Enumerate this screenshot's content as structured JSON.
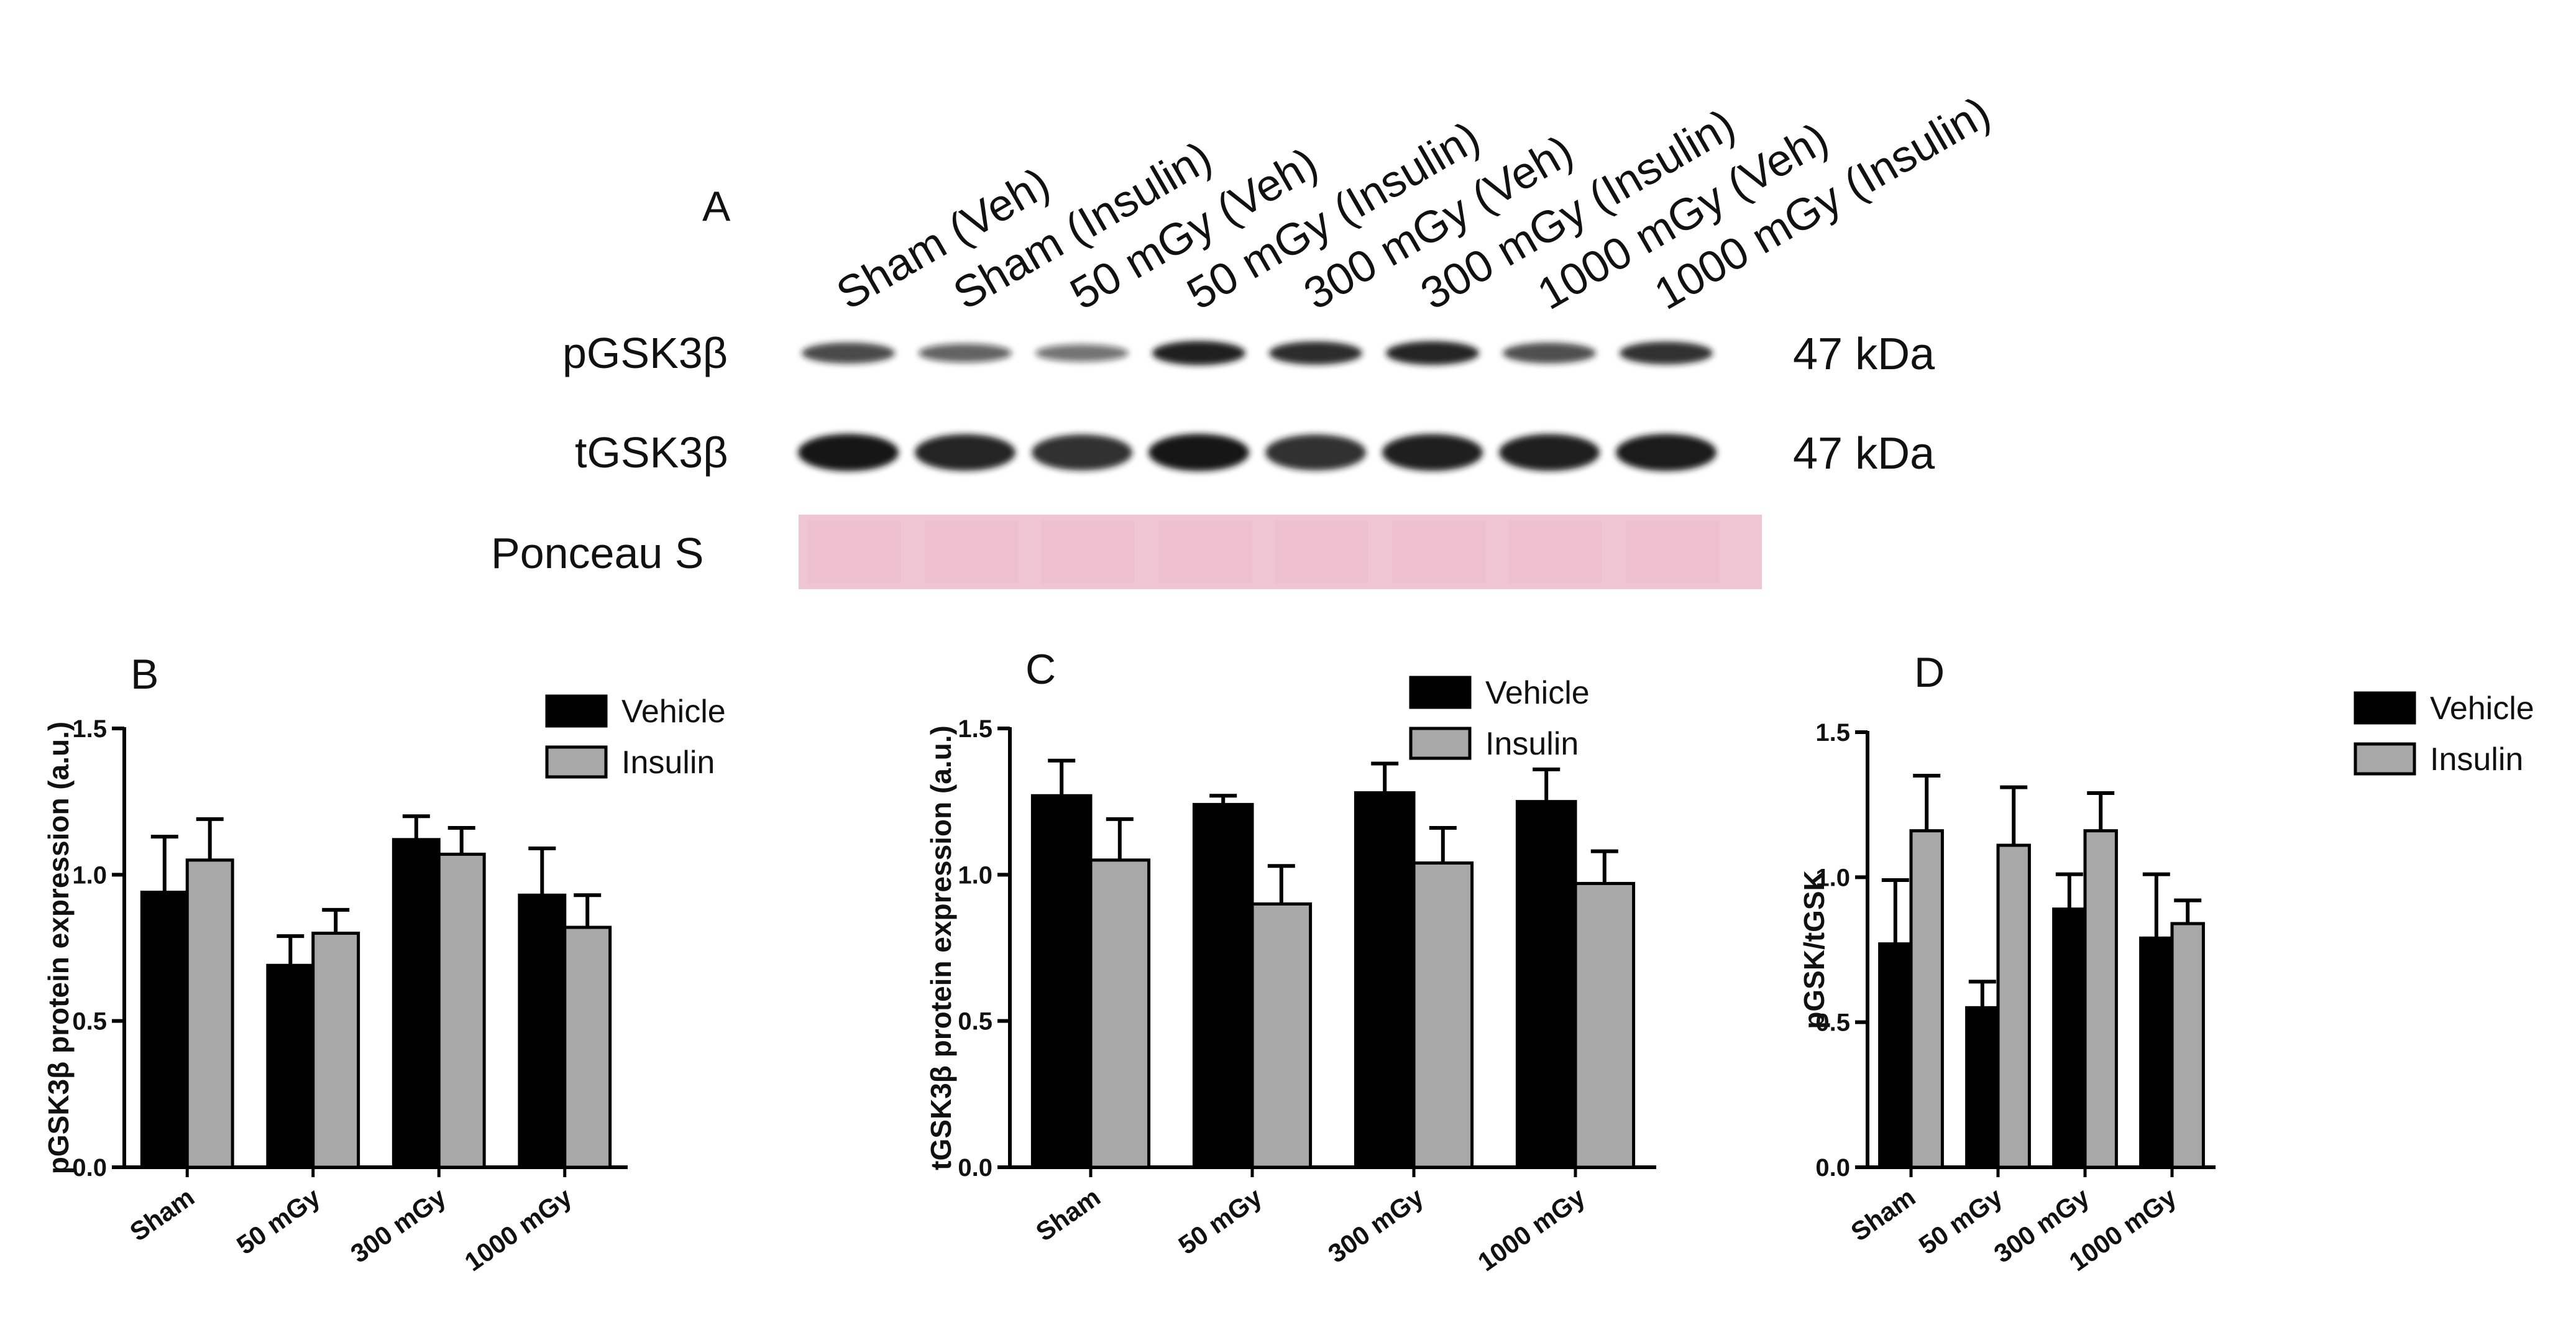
{
  "blot": {
    "panel_label": "A",
    "lanes": [
      "Sham (Veh)",
      "Sham (Insulin)",
      "50 mGy (Veh)",
      "50 mGy (Insulin)",
      "300 mGy (Veh)",
      "300 mGy (Insulin)",
      "1000 mGy (Veh)",
      "1000 mGy (Insulin)"
    ],
    "rows": [
      {
        "label": "pGSK3β",
        "size": "47 kDa",
        "intensity": [
          0.72,
          0.55,
          0.45,
          0.95,
          0.88,
          0.92,
          0.7,
          0.85
        ]
      },
      {
        "label": "tGSK3β",
        "size": "47 kDa",
        "intensity": [
          1.0,
          0.92,
          0.85,
          1.0,
          0.85,
          0.95,
          0.95,
          0.98
        ]
      },
      {
        "label": "Ponceau S",
        "size": "",
        "intensity": []
      }
    ],
    "colors": {
      "band": "#161616",
      "ponceau": "#f1c6d4",
      "ponceau_edge": "#ebb9c9"
    }
  },
  "chart_data": [
    {
      "panel": "B",
      "type": "bar",
      "title": "",
      "xlabel": "",
      "ylabel": "pGSK3β protein expression (a.u.)",
      "categories": [
        "Sham",
        "50 mGy",
        "300 mGy",
        "1000 mGy"
      ],
      "series": [
        {
          "name": "Vehicle",
          "color": "#000000",
          "values": [
            0.94,
            0.69,
            1.12,
            0.93
          ],
          "errors": [
            0.19,
            0.1,
            0.08,
            0.16
          ]
        },
        {
          "name": "Insulin",
          "color": "#a8a8a8",
          "values": [
            1.05,
            0.8,
            1.07,
            0.82
          ],
          "errors": [
            0.14,
            0.08,
            0.09,
            0.11
          ]
        }
      ],
      "ylim": [
        0,
        1.5
      ],
      "yticks": [
        "0.0",
        "0.5",
        "1.0",
        "1.5"
      ],
      "legend": "top-right"
    },
    {
      "panel": "C",
      "type": "bar",
      "title": "",
      "xlabel": "",
      "ylabel": "tGSK3β protein expression (a.u.)",
      "categories": [
        "Sham",
        "50 mGy",
        "300 mGy",
        "1000 mGy"
      ],
      "series": [
        {
          "name": "Vehicle",
          "color": "#000000",
          "values": [
            1.27,
            1.24,
            1.28,
            1.25
          ],
          "errors": [
            0.12,
            0.03,
            0.1,
            0.11
          ]
        },
        {
          "name": "Insulin",
          "color": "#a8a8a8",
          "values": [
            1.05,
            0.9,
            1.04,
            0.97
          ],
          "errors": [
            0.14,
            0.13,
            0.12,
            0.11
          ]
        }
      ],
      "ylim": [
        0,
        1.5
      ],
      "yticks": [
        "0.0",
        "0.5",
        "1.0",
        "1.5"
      ],
      "legend": "top-right"
    },
    {
      "panel": "D",
      "type": "bar",
      "title": "",
      "xlabel": "",
      "ylabel": "pGSK/tGSK",
      "categories": [
        "Sham",
        "50 mGy",
        "300 mGy",
        "1000 mGy"
      ],
      "series": [
        {
          "name": "Vehicle",
          "color": "#000000",
          "values": [
            0.77,
            0.55,
            0.89,
            0.79
          ],
          "errors": [
            0.22,
            0.09,
            0.12,
            0.22
          ]
        },
        {
          "name": "Insulin",
          "color": "#a8a8a8",
          "values": [
            1.16,
            1.11,
            1.16,
            0.84
          ],
          "errors": [
            0.19,
            0.2,
            0.13,
            0.08
          ]
        }
      ],
      "ylim": [
        0,
        1.5
      ],
      "yticks": [
        "0.0",
        "0.5",
        "1.0",
        "1.5"
      ],
      "legend": "top-right"
    }
  ]
}
